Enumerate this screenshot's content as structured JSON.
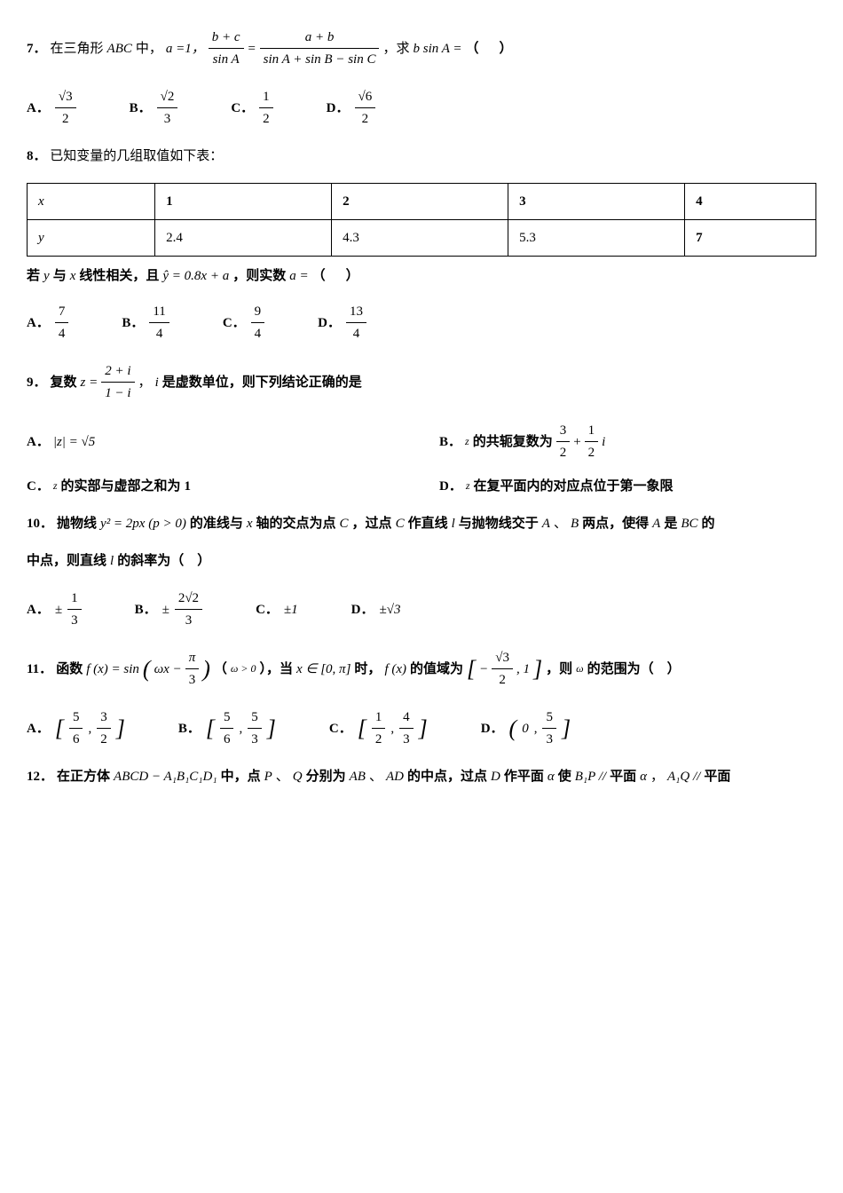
{
  "q7": {
    "num": "7．",
    "text_prefix": "在三角形",
    "ABC": "ABC",
    "zhong": "中，",
    "a_eq": "a =1，",
    "frac1_num": "b + c",
    "frac1_den": "sin A",
    "eq": "=",
    "frac2_num": "a + b",
    "frac2_den": "sin A + sin B − sin C",
    "comma_qiu": "，求",
    "bsinA": "b sin A = ",
    "blank": "（　）",
    "choices": {
      "A_num": "√3",
      "A_den": "2",
      "B_num": "√2",
      "B_den": "3",
      "C_num": "1",
      "C_den": "2",
      "D_num": "√6",
      "D_den": "2"
    }
  },
  "q8": {
    "num": "8．",
    "text": "已知变量的几组取值如下表：",
    "table": {
      "r1": [
        "x",
        "1",
        "2",
        "3",
        "4"
      ],
      "r2": [
        "y",
        "2.4",
        "4.3",
        "5.3",
        "7"
      ]
    },
    "line2_a": "若",
    "line2_y": "y",
    "line2_b": "与",
    "line2_x": "x",
    "line2_c": "线性相关，且",
    "yhat": "ŷ = 0.8x + a",
    "line2_d": "，则实数",
    "a_eq": "a =",
    "line2_blank": "（　）",
    "choices": {
      "A_num": "7",
      "A_den": "4",
      "B_num": "11",
      "B_den": "4",
      "C_num": "9",
      "C_den": "4",
      "D_num": "13",
      "D_den": "4"
    }
  },
  "q9": {
    "num": "9．",
    "text_a": "复数",
    "z_eq": "z =",
    "frac_num": "2 + i",
    "frac_den": "1 − i",
    "text_b": "，",
    "i": "i",
    "text_c": "是虚数单位，则下列结论正确的是",
    "A_label": "A．",
    "A_body": "|z| = √5",
    "B_label": "B．",
    "B_pre": "z",
    "B_mid": "的共轭复数为",
    "B_frac1_num": "3",
    "B_frac1_den": "2",
    "B_plus": "+",
    "B_frac2_num": "1",
    "B_frac2_den": "2",
    "B_i": "i",
    "C_label": "C．",
    "C_pre": "z",
    "C_body": "的实部与虚部之和为",
    "C_one": "1",
    "D_label": "D．",
    "D_pre": "z",
    "D_body": "在复平面内的对应点位于第一象限"
  },
  "q10": {
    "num": "10．",
    "text_a": "抛物线",
    "ysq": "y² = 2px (p > 0)",
    "text_b": "的准线与",
    "x": "x",
    "text_c": "轴的交点为点",
    "C": "C",
    "text_d": "，过点",
    "C2": "C",
    "text_e": "作直线",
    "l": "l",
    "text_f": "与抛物线交于",
    "A": "A",
    "text_g": "、",
    "B": "B",
    "text_h": "两点，使得",
    "A2": "A",
    "text_i": "是",
    "BC": "BC",
    "text_j": "的",
    "line2a": "中点，则直线",
    "l2": "l",
    "line2b": "的斜率为（　）",
    "choices": {
      "A_pm": "±",
      "A_num": "1",
      "A_den": "3",
      "B_pm": "±",
      "B_num": "2√2",
      "B_den": "3",
      "C": "±1",
      "D": "±√3"
    }
  },
  "q11": {
    "num": "11．",
    "text_a": "函数",
    "fx": "f (x) = sin",
    "lp": "(",
    "wx": "ωx −",
    "pi_num": "π",
    "pi_den": "3",
    "rp": ")",
    "text_b": "（",
    "wgt0": "ω > 0",
    "text_c": "），当",
    "xin": "x ∈ [0, π]",
    "text_d": "时，",
    "fx2": "f (x)",
    "text_e": "的值域为",
    "lb": "[",
    "neg": "−",
    "r3_num": "√3",
    "r3_den": "2",
    "one": ", 1",
    "rb": "]",
    "text_f": "，则",
    "w": "ω",
    "text_g": "的范围为（　）",
    "choices": {
      "A_l": "[",
      "A_a_num": "5",
      "A_a_den": "6",
      "A_c": ",",
      "A_b_num": "3",
      "A_b_den": "2",
      "A_r": "]",
      "B_l": "[",
      "B_a_num": "5",
      "B_a_den": "6",
      "B_c": ",",
      "B_b_num": "5",
      "B_b_den": "3",
      "B_r": "]",
      "C_l": "[",
      "C_a_num": "1",
      "C_a_den": "2",
      "C_c": ",",
      "C_b_num": "4",
      "C_b_den": "3",
      "C_r": "]",
      "D_l": "(",
      "D_a": "0",
      "D_c": ",",
      "D_b_num": "5",
      "D_b_den": "3",
      "D_r": "]"
    }
  },
  "q12": {
    "num": "12．",
    "text_a": "在正方体",
    "cube": "ABCD − A₁B₁C₁D₁",
    "text_b": "中，点",
    "P": "P",
    "text_c": "、",
    "Q": "Q",
    "text_d": "分别为",
    "AB": "AB",
    "text_e": "、",
    "AD": "AD",
    "text_f": "的中点，过点",
    "D": "D",
    "text_g": "作平面",
    "alpha1": "α",
    "text_h": "使",
    "B1P": "B₁P //",
    "text_i": "平面",
    "alpha2": "α",
    "text_j": "，",
    "A1Q": "A₁Q //",
    "text_k": "平面"
  }
}
